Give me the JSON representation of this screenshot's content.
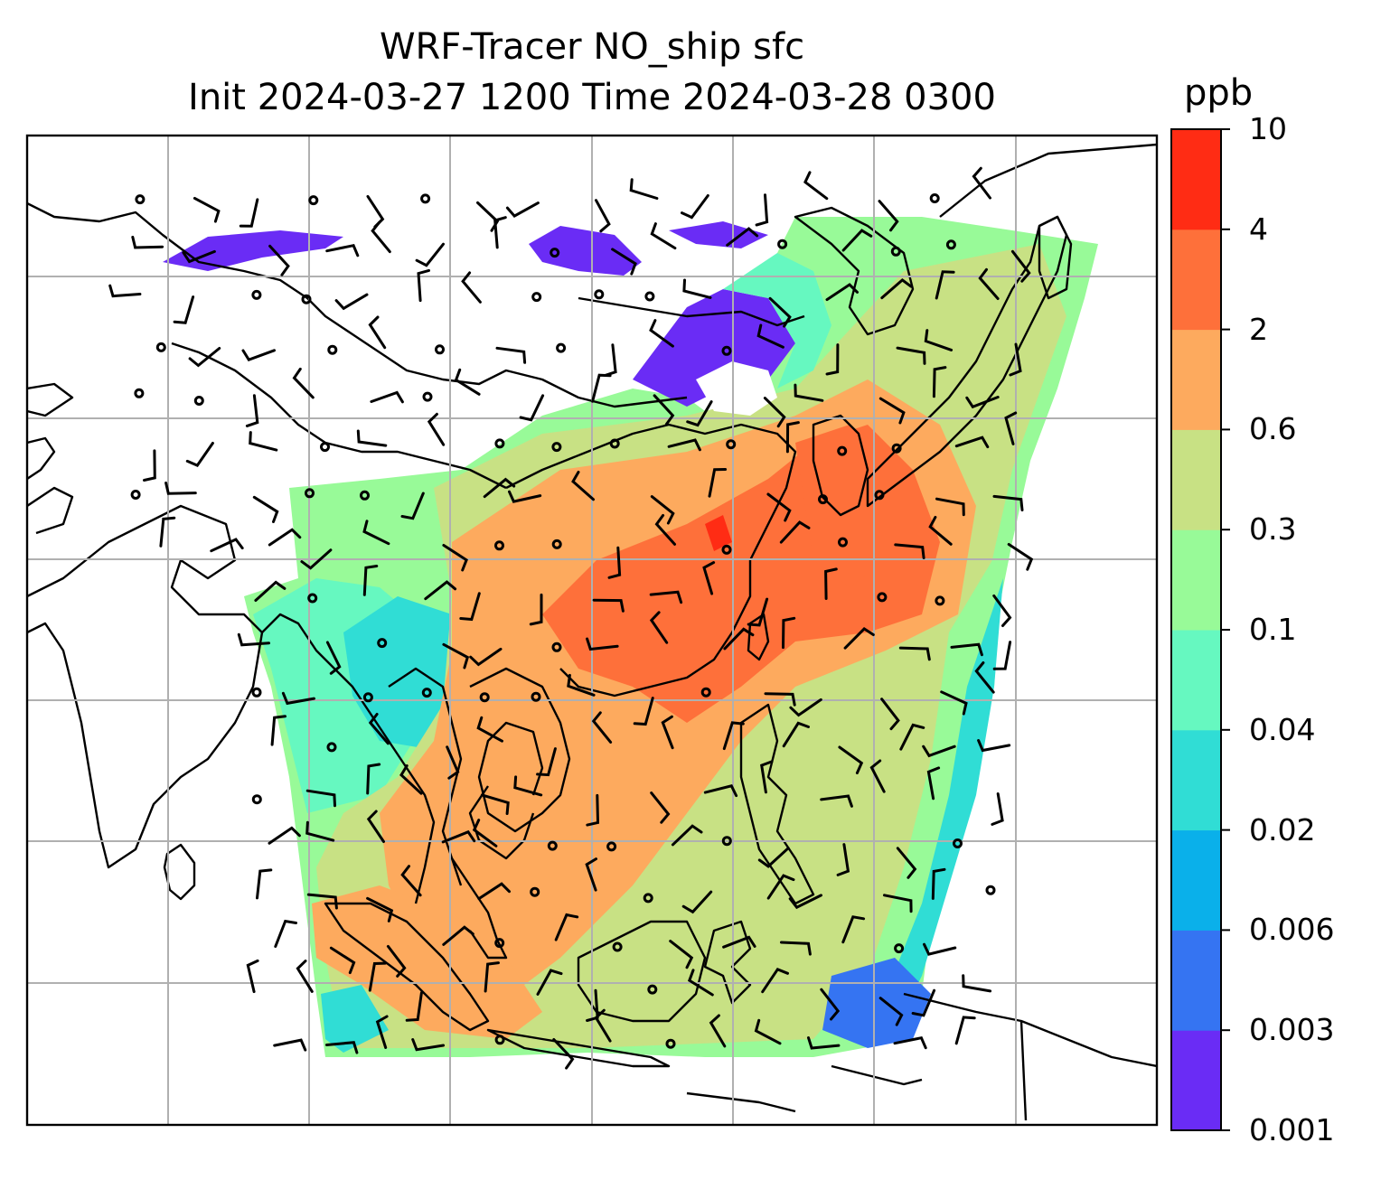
{
  "title": {
    "line1": "WRF-Tracer NO_ship sfc",
    "line2": "Init 2024-03-27 1200 Time 2024-03-28 0300"
  },
  "colorbar": {
    "unit": "ppb",
    "ticks": [
      "0.001",
      "0.003",
      "0.006",
      "0.02",
      "0.04",
      "0.1",
      "0.3",
      "0.6",
      "2",
      "4",
      "10"
    ],
    "colors": [
      "#6a2cf5",
      "#3574f2",
      "#0ab0ea",
      "#30ddd5",
      "#66f8c0",
      "#98fa98",
      "#c8e184",
      "#fdaa5e",
      "#fe703a",
      "#ff2c14"
    ]
  },
  "map": {
    "grid_color": "#b0b0b0",
    "coastline_color": "#000000",
    "field_colors": {
      "lowest": "#6a2cf5",
      "low": "#3574f2",
      "cyan": "#30ddd5",
      "aqua": "#66f8c0",
      "green": "#98fa98",
      "olive": "#c8e184",
      "orange": "#fdaa5e",
      "dark_orange": "#fe703a",
      "red": "#ff2c14"
    }
  }
}
